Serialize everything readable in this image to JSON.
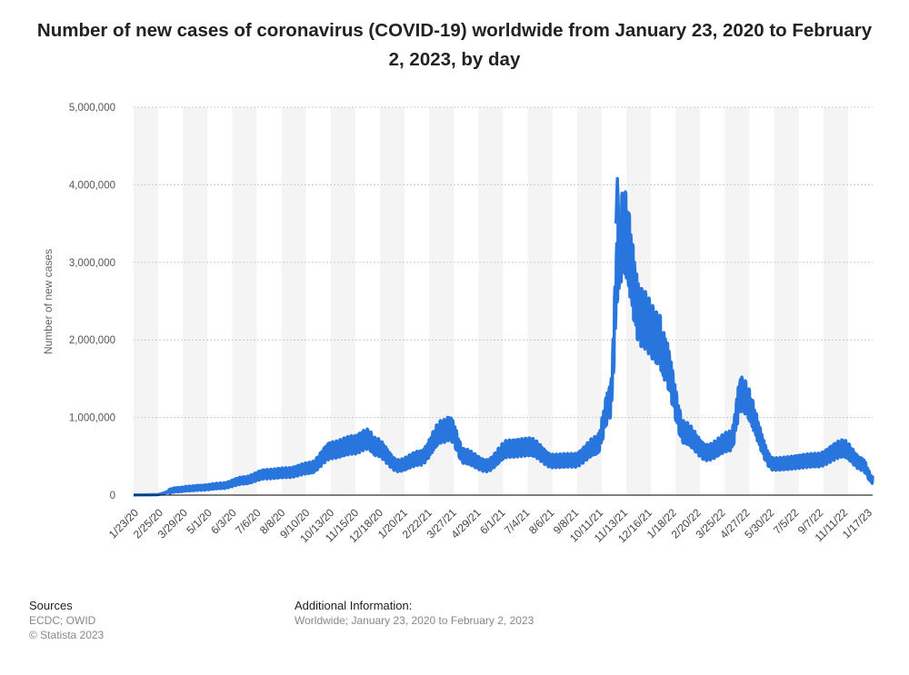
{
  "chart_data": {
    "type": "line",
    "title": "Number of new cases of coronavirus (COVID-19) worldwide from January 23, 2020 to February 2, 2023, by day",
    "ylabel": "Number of new cases",
    "xlabel": "",
    "ylim": [
      0,
      5000000
    ],
    "yticks": [
      "0",
      "1,000,000",
      "2,000,000",
      "3,000,000",
      "4,000,000",
      "5,000,000"
    ],
    "ytick_values": [
      0,
      1000000,
      2000000,
      3000000,
      4000000,
      5000000
    ],
    "x_tick_labels": [
      "1/23/20",
      "2/25/20",
      "3/29/20",
      "5/1/20",
      "6/3/20",
      "7/6/20",
      "8/8/20",
      "9/10/20",
      "10/13/20",
      "11/15/20",
      "12/18/20",
      "1/20/21",
      "2/22/21",
      "3/27/21",
      "4/29/21",
      "6/1/21",
      "7/4/21",
      "8/6/21",
      "9/8/21",
      "10/11/21",
      "11/13/21",
      "12/16/21",
      "1/18/22",
      "2/20/22",
      "3/25/22",
      "4/27/22",
      "5/30/22",
      "7/5/22",
      "9/7/22",
      "11/11/22",
      "1/17/23"
    ],
    "grid": true,
    "line_color": "#2876dd",
    "series": [
      {
        "x": [
          "2020-01-23",
          "2020-02-25",
          "2020-03-29",
          "2020-04-15",
          "2020-05-01",
          "2020-06-03",
          "2020-07-06",
          "2020-08-08",
          "2020-09-10",
          "2020-10-13",
          "2020-11-15",
          "2020-12-18",
          "2021-01-07",
          "2021-01-20",
          "2021-02-22",
          "2021-03-27",
          "2021-04-29",
          "2021-05-10",
          "2021-06-01",
          "2021-07-04",
          "2021-08-06",
          "2021-09-08",
          "2021-10-11",
          "2021-11-13",
          "2021-12-16",
          "2022-01-05",
          "2022-01-18",
          "2022-01-25",
          "2022-02-20",
          "2022-03-20",
          "2022-03-25",
          "2022-04-27",
          "2022-05-30",
          "2022-07-05",
          "2022-07-20",
          "2022-09-07",
          "2022-11-11",
          "2022-12-20",
          "2023-01-17",
          "2023-02-02"
        ],
        "values": [
          2000,
          5000,
          70000,
          85000,
          95000,
          120000,
          190000,
          270000,
          290000,
          350000,
          580000,
          650000,
          720000,
          620000,
          380000,
          480000,
          820000,
          860000,
          500000,
          380000,
          600000,
          620000,
          440000,
          450000,
          640000,
          1200000,
          3100000,
          3400000,
          2300000,
          2000000,
          1800000,
          800000,
          550000,
          700000,
          1300000,
          400000,
          450000,
          600000,
          400000,
          200000
        ]
      }
    ]
  },
  "footer": {
    "sources_heading": "Sources",
    "sources_lines": [
      "ECDC; OWID",
      "© Statista 2023"
    ],
    "info_heading": "Additional Information:",
    "info_text": "Worldwide; January 23, 2020 to February 2, 2023"
  },
  "colors": {
    "accent": "#2876dd",
    "band": "#f4f4f4",
    "grid": "#cccccc",
    "baseline": "#000000"
  }
}
